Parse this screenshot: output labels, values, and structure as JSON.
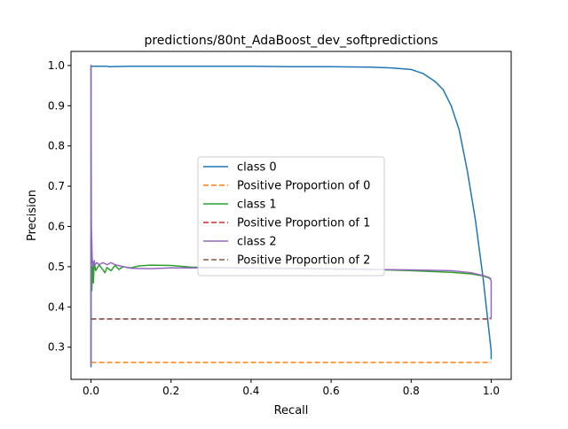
{
  "chart_data": {
    "type": "line",
    "title": "predictions/80nt_AdaBoost_dev_softpredictions",
    "xlabel": "Recall",
    "ylabel": "Precision",
    "xlim": [
      -0.05,
      1.05
    ],
    "ylim": [
      0.22,
      1.035
    ],
    "xticks": [
      0.0,
      0.2,
      0.4,
      0.6,
      0.8,
      1.0
    ],
    "xtick_labels": [
      "0.0",
      "0.2",
      "0.4",
      "0.6",
      "0.8",
      "1.0"
    ],
    "yticks": [
      0.3,
      0.4,
      0.5,
      0.6,
      0.7,
      0.8,
      0.9,
      1.0
    ],
    "ytick_labels": [
      "0.3",
      "0.4",
      "0.5",
      "0.6",
      "0.7",
      "0.8",
      "0.9",
      "1.0"
    ],
    "grid": false,
    "legend_position": "center",
    "series": [
      {
        "name": "class 0",
        "color": "#1f77b4",
        "style": "solid",
        "x": [
          0.0,
          0.0,
          0.001,
          0.04,
          0.045,
          0.1,
          0.2,
          0.3,
          0.4,
          0.5,
          0.6,
          0.7,
          0.75,
          0.8,
          0.83,
          0.86,
          0.88,
          0.9,
          0.92,
          0.94,
          0.96,
          0.98,
          0.99,
          1.0,
          1.0
        ],
        "y": [
          0.25,
          1.0,
          0.998,
          0.998,
          0.997,
          0.998,
          0.998,
          0.998,
          0.998,
          0.997,
          0.997,
          0.996,
          0.994,
          0.99,
          0.98,
          0.96,
          0.94,
          0.9,
          0.84,
          0.74,
          0.62,
          0.47,
          0.38,
          0.29,
          0.27
        ]
      },
      {
        "name": "Positive Proportion of 0",
        "color": "#ff7f0e",
        "style": "dashed",
        "x": [
          0.0,
          1.0
        ],
        "y": [
          0.262,
          0.262
        ]
      },
      {
        "name": "class 1",
        "color": "#2ca02c",
        "style": "solid",
        "x": [
          0.0,
          0.0,
          0.002,
          0.004,
          0.006,
          0.008,
          0.012,
          0.02,
          0.03,
          0.035,
          0.04,
          0.05,
          0.06,
          0.07,
          0.08,
          0.1,
          0.12,
          0.15,
          0.2,
          0.25,
          0.3,
          0.4,
          0.5,
          0.6,
          0.7,
          0.8,
          0.9,
          0.95,
          0.98,
          1.0
        ],
        "y": [
          0.26,
          0.57,
          0.44,
          0.5,
          0.46,
          0.51,
          0.49,
          0.505,
          0.492,
          0.485,
          0.498,
          0.49,
          0.503,
          0.493,
          0.5,
          0.497,
          0.502,
          0.504,
          0.503,
          0.499,
          0.498,
          0.497,
          0.496,
          0.495,
          0.493,
          0.49,
          0.486,
          0.482,
          0.477,
          0.47
        ]
      },
      {
        "name": "Positive Proportion of 1",
        "color": "#d62728",
        "style": "dashed",
        "x": [
          0.0,
          1.0
        ],
        "y": [
          0.37,
          0.37
        ]
      },
      {
        "name": "class 2",
        "color": "#9467bd",
        "style": "solid",
        "x": [
          0.0,
          0.0,
          0.001,
          0.003,
          0.005,
          0.008,
          0.01,
          0.015,
          0.02,
          0.03,
          0.04,
          0.05,
          0.06,
          0.08,
          0.1,
          0.15,
          0.2,
          0.3,
          0.4,
          0.5,
          0.6,
          0.7,
          0.8,
          0.9,
          0.95,
          0.98,
          0.995,
          1.0,
          1.0,
          0.995
        ],
        "y": [
          0.255,
          1.0,
          0.6,
          0.52,
          0.5,
          0.515,
          0.505,
          0.51,
          0.505,
          0.51,
          0.505,
          0.51,
          0.505,
          0.5,
          0.496,
          0.495,
          0.497,
          0.497,
          0.496,
          0.495,
          0.494,
          0.493,
          0.492,
          0.49,
          0.485,
          0.478,
          0.473,
          0.465,
          0.372,
          0.372
        ]
      },
      {
        "name": "Positive Proportion of 2",
        "color": "#8c564b",
        "style": "dashed",
        "x": [
          0.0,
          1.0
        ],
        "y": [
          0.37,
          0.37
        ]
      }
    ]
  }
}
